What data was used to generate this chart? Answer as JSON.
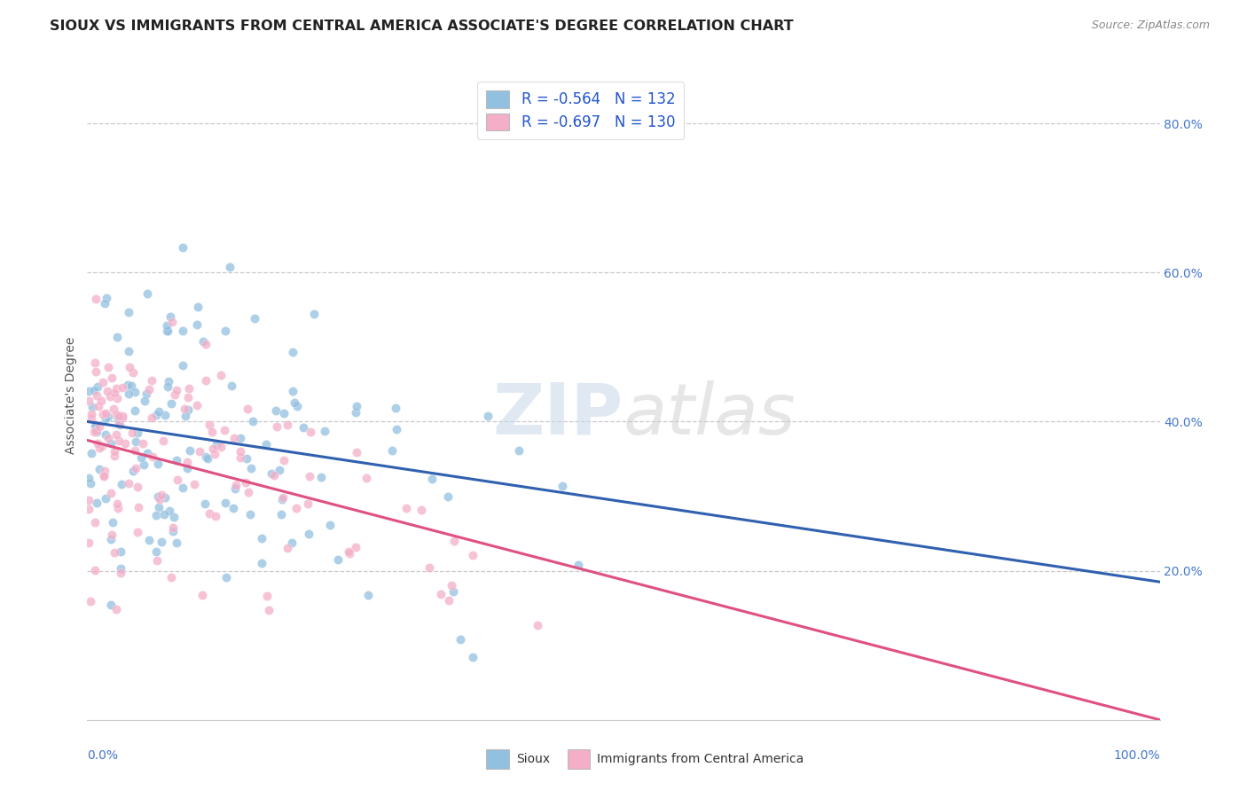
{
  "title": "SIOUX VS IMMIGRANTS FROM CENTRAL AMERICA ASSOCIATE'S DEGREE CORRELATION CHART",
  "source": "Source: ZipAtlas.com",
  "ylabel": "Associate's Degree",
  "watermark_text": "ZIPatlas",
  "sioux_color": "#92c0e0",
  "immigrant_color": "#f4aec8",
  "trend_sioux_color": "#3060b0",
  "trend_immigrant_color": "#e05080",
  "background_color": "#ffffff",
  "grid_color": "#c8c8d0",
  "R_sioux": -0.564,
  "R_immigrant": -0.697,
  "N_sioux": 132,
  "N_immigrant": 130,
  "xlim": [
    0.0,
    1.0
  ],
  "ylim": [
    0.0,
    0.87
  ],
  "yticks": [
    0.2,
    0.4,
    0.6,
    0.8
  ],
  "ytick_labels": [
    "20.0%",
    "40.0%",
    "60.0%",
    "80.0%"
  ],
  "legend_text_color": "#2255cc",
  "legend_R_color": "#cc2244",
  "trend_sioux_intercept": 0.4,
  "trend_sioux_slope": -0.215,
  "trend_immigrant_intercept": 0.375,
  "trend_immigrant_slope": -0.375
}
